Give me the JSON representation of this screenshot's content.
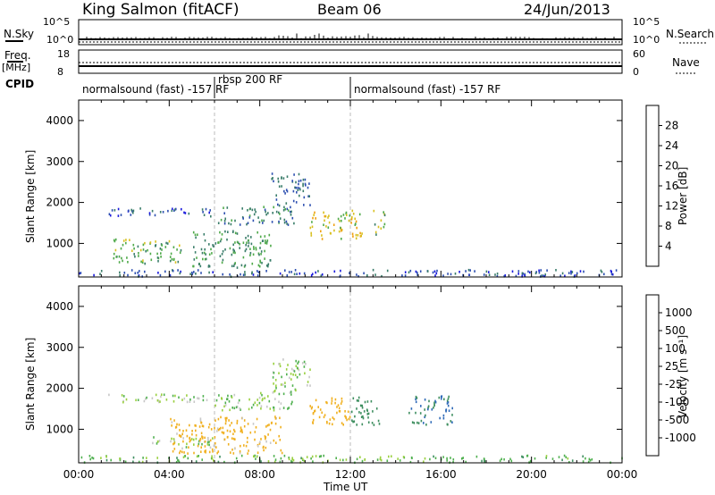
{
  "header": {
    "station": "King Salmon (fitACF)",
    "beam": "Beam 06",
    "date": "24/Jun/2013"
  },
  "params": {
    "nsky_label": "N.Sky",
    "nsky_top": "10^5",
    "nsky_bottom": "10^0",
    "nsearch_label": "N.Search",
    "nsearch_top": "10^5",
    "nsearch_bottom": "10^0",
    "freq_label": "Freq.",
    "freq_unit": "[MHz]",
    "freq_top": "18",
    "freq_bottom": "8",
    "nave_label": "Nave",
    "nave_top": "60",
    "nave_bottom": "0",
    "cpid_label": "CPID"
  },
  "cpid_segments": [
    {
      "label": "normalsound (fast) -157 RF",
      "start_h": 0,
      "end_h": 6
    },
    {
      "label": "rbsp 200 RF",
      "start_h": 6,
      "end_h": 12
    },
    {
      "label": "normalsound (fast) -157 RF",
      "start_h": 12,
      "end_h": 24
    }
  ],
  "x_axis": {
    "title": "Time UT",
    "ticks": [
      "00:00",
      "04:00",
      "08:00",
      "12:00",
      "16:00",
      "20:00",
      "00:00"
    ],
    "range_h": [
      0,
      24
    ]
  },
  "y_axis": {
    "title": "Slant Range [km]",
    "ticks": [
      "1000",
      "2000",
      "3000",
      "4000"
    ],
    "range_km": [
      180,
      4500
    ]
  },
  "colorbars": {
    "power": {
      "title": "Power [dB]",
      "ticks": [
        "4",
        "8",
        "12",
        "16",
        "20",
        "24",
        "28"
      ],
      "colors": [
        "#1a1adc",
        "#2d4fb0",
        "#3a7d6a",
        "#4faa4a",
        "#d8c020",
        "#f0a010",
        "#e86010",
        "#d03010",
        "#c01010"
      ]
    },
    "velocity": {
      "title": "Velocity [m s⁻¹]",
      "ticks": [
        "1000",
        "500",
        "100",
        "25",
        "-25",
        "-100",
        "-500",
        "-1000"
      ],
      "colors": [
        "#1f3fc0",
        "#2f6ab8",
        "#3f8f60",
        "#4fb04f",
        "#9ad040",
        "#c8c8c8",
        "#f0b020",
        "#f08010",
        "#f05010",
        "#e02010",
        "#c01010"
      ]
    }
  },
  "chart_data": [
    {
      "type": "heatmap",
      "title": "Power [dB]",
      "xlabel": "Time UT",
      "ylabel": "Slant Range [km]",
      "x_unit": "hours UT",
      "xlim": [
        0,
        24
      ],
      "ylim": [
        180,
        4500
      ],
      "colorbar_ticks": [
        4,
        8,
        12,
        16,
        20,
        24,
        28
      ],
      "scatter_regions": [
        {
          "t_start": 1.2,
          "t_end": 6.0,
          "r_min": 1650,
          "r_max": 1850,
          "value": 6
        },
        {
          "t_start": 6.0,
          "t_end": 9.5,
          "r_min": 1450,
          "r_max": 1900,
          "value": 10
        },
        {
          "t_start": 8.5,
          "t_end": 10.2,
          "r_min": 1900,
          "r_max": 2700,
          "value": 8
        },
        {
          "t_start": 1.5,
          "t_end": 4.5,
          "r_min": 500,
          "r_max": 1100,
          "value": 14
        },
        {
          "t_start": 5.0,
          "t_end": 8.5,
          "r_min": 400,
          "r_max": 1300,
          "value": 12
        },
        {
          "t_start": 10.2,
          "t_end": 12.5,
          "r_min": 1100,
          "r_max": 1800,
          "value": 18
        },
        {
          "t_start": 13.0,
          "t_end": 13.5,
          "r_min": 1200,
          "r_max": 1800,
          "value": 14
        },
        {
          "t_start": 0.0,
          "t_end": 24.0,
          "r_min": 180,
          "r_max": 350,
          "value": 6
        }
      ]
    },
    {
      "type": "heatmap",
      "title": "Velocity [m s⁻¹]",
      "xlabel": "Time UT",
      "ylabel": "Slant Range [km]",
      "x_unit": "hours UT",
      "xlim": [
        0,
        24
      ],
      "ylim": [
        180,
        4500
      ],
      "colorbar_ticks": [
        1000,
        500,
        100,
        25,
        -25,
        -100,
        -500,
        -1000
      ],
      "scatter_regions": [
        {
          "t_start": 1.2,
          "t_end": 6.0,
          "r_min": 1650,
          "r_max": 1850,
          "value": 0
        },
        {
          "t_start": 6.0,
          "t_end": 9.5,
          "r_min": 1450,
          "r_max": 1900,
          "value": 10
        },
        {
          "t_start": 8.5,
          "t_end": 10.2,
          "r_min": 1900,
          "r_max": 2700,
          "value": 0
        },
        {
          "t_start": 3.0,
          "t_end": 6.0,
          "r_min": 550,
          "r_max": 800,
          "value": 0
        },
        {
          "t_start": 4.0,
          "t_end": 9.0,
          "r_min": 400,
          "r_max": 1300,
          "value": -150
        },
        {
          "t_start": 10.2,
          "t_end": 12.0,
          "r_min": 1100,
          "r_max": 1800,
          "value": -200
        },
        {
          "t_start": 12.0,
          "t_end": 13.3,
          "r_min": 1100,
          "r_max": 1800,
          "value": 300
        },
        {
          "t_start": 14.5,
          "t_end": 16.5,
          "r_min": 1100,
          "r_max": 1800,
          "value": 500
        },
        {
          "t_start": 0.0,
          "t_end": 24.0,
          "r_min": 180,
          "r_max": 350,
          "value": 50
        }
      ]
    }
  ]
}
